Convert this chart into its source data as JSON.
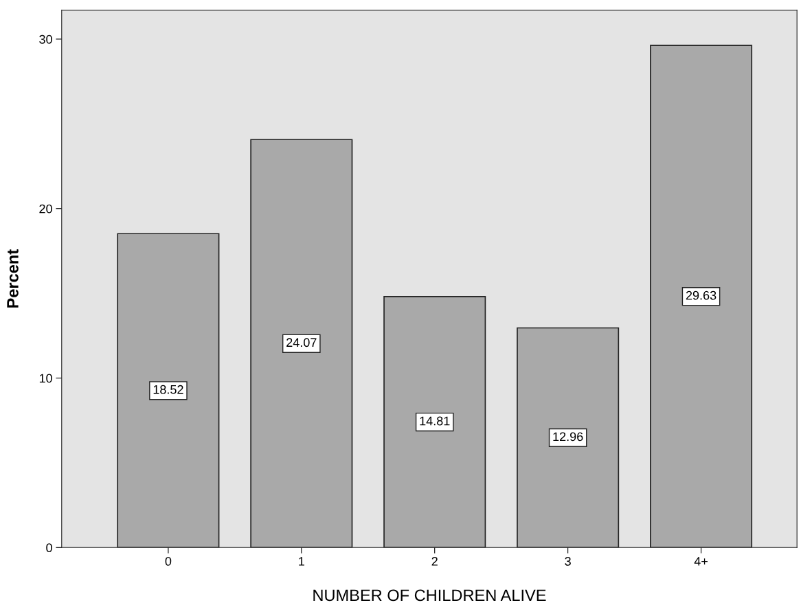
{
  "chart_data": {
    "type": "bar",
    "xlabel": "NUMBER OF CHILDREN ALIVE",
    "ylabel": "Percent",
    "categories": [
      "0",
      "1",
      "2",
      "3",
      "4+"
    ],
    "values": [
      18.52,
      24.07,
      14.81,
      12.96,
      29.63
    ],
    "color": "#a9a9a9",
    "ylim": [
      0,
      31.7
    ],
    "yticks": [
      0,
      10,
      20,
      30
    ],
    "data_labels": true,
    "grid": false
  }
}
